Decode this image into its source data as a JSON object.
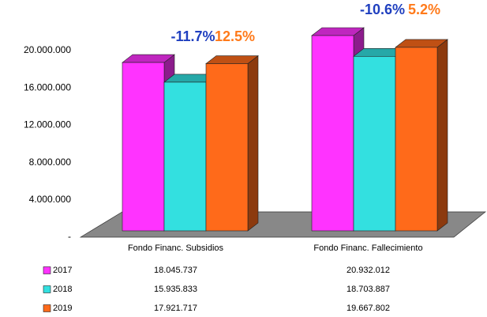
{
  "chart_data": {
    "type": "bar3d",
    "categories": [
      "Fondo Financ. Subsidios",
      "Fondo Financ. Fallecimiento"
    ],
    "series": [
      {
        "name": "2017",
        "color": "#ff33ff",
        "values": [
          18045737,
          20932012
        ],
        "value_labels": [
          "18.045.737",
          "20.932.012"
        ]
      },
      {
        "name": "2018",
        "color": "#33e0e0",
        "values": [
          15935833,
          18703887
        ],
        "value_labels": [
          "15.935.833",
          "18.703.887"
        ]
      },
      {
        "name": "2019",
        "color": "#ff6a1a",
        "values": [
          17921717,
          19667802
        ],
        "value_labels": [
          "17.921.717",
          "19.667.802"
        ]
      }
    ],
    "ylim": [
      0,
      24000000
    ],
    "yticks": [
      {
        "value": 0,
        "label": "-"
      },
      {
        "value": 4000000,
        "label": "4.000.000"
      },
      {
        "value": 8000000,
        "label": "8.000.000"
      },
      {
        "value": 12000000,
        "label": "12.000.000"
      },
      {
        "value": 16000000,
        "label": "16.000.000"
      },
      {
        "value": 20000000,
        "label": "20.000.000"
      }
    ],
    "annotations": [
      {
        "text": "-11.7%",
        "category": 0,
        "series": 1,
        "color": "#1f3fbf"
      },
      {
        "text": "12.5%",
        "category": 0,
        "series": 2,
        "color": "#ff7a1a"
      },
      {
        "text": "-10.6%",
        "category": 1,
        "series": 1,
        "color": "#1f3fbf"
      },
      {
        "text": "5.2%",
        "category": 1,
        "series": 2,
        "color": "#ff7a1a"
      }
    ],
    "floor_color": "#888888"
  }
}
